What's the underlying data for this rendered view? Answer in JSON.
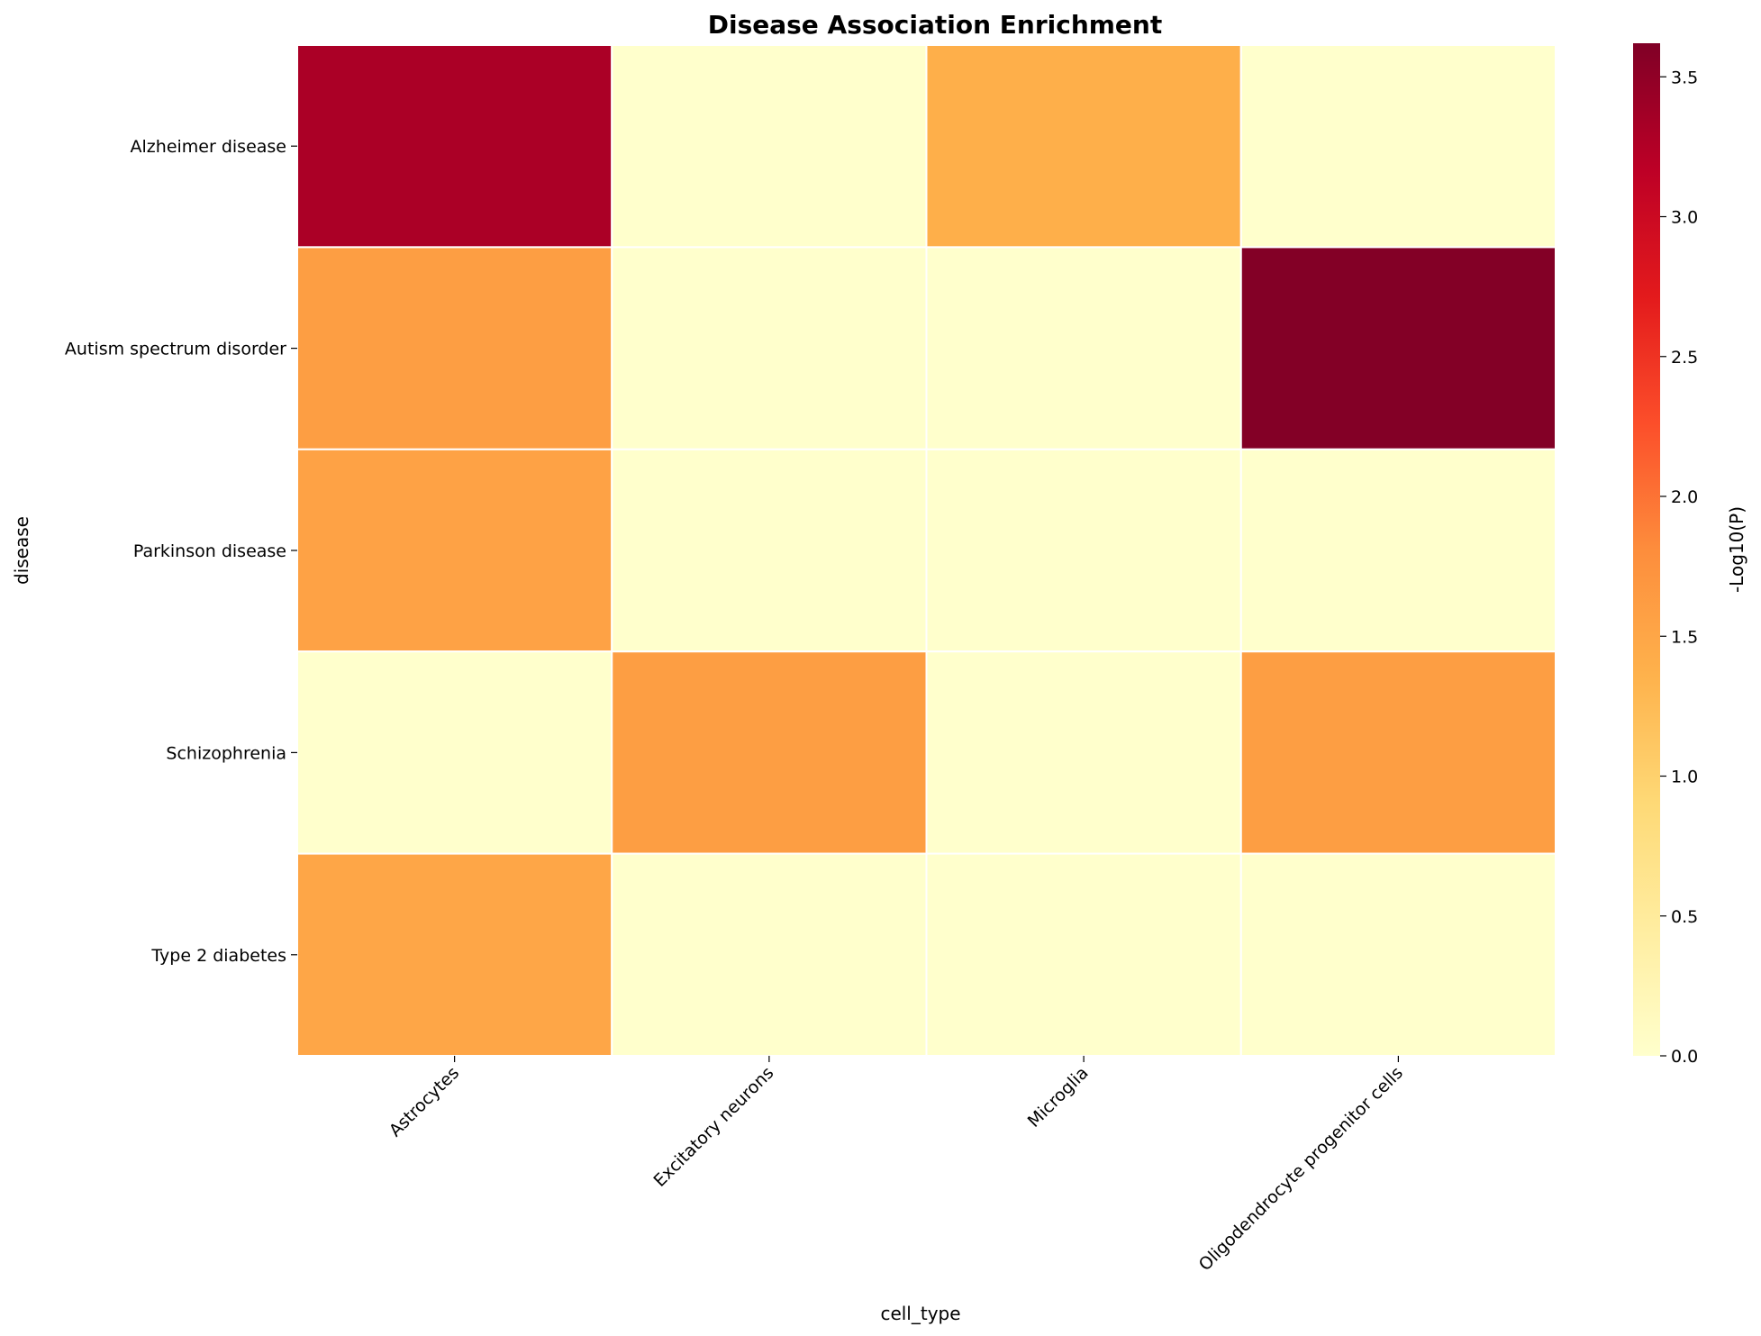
{
  "chart_data": {
    "type": "heatmap",
    "title": "Disease Association Enrichment",
    "xlabel": "cell_type",
    "ylabel": "disease",
    "x_categories": [
      "Astrocytes",
      "Excitatory neurons",
      "Microglia",
      "Oligodendrocyte progenitor cells"
    ],
    "y_categories": [
      "Alzheimer disease",
      "Autism spectrum disorder",
      "Parkinson disease",
      "Schizophrenia",
      "Type 2 diabetes"
    ],
    "values": [
      [
        3.3,
        0.0,
        1.4,
        0.0
      ],
      [
        1.6,
        0.0,
        0.0,
        3.6
      ],
      [
        1.55,
        0.0,
        0.0,
        0.0
      ],
      [
        0.0,
        1.6,
        0.0,
        1.6
      ],
      [
        1.5,
        0.0,
        0.0,
        0.0
      ]
    ],
    "colorbar": {
      "label": "-Log10(P)",
      "colormap": "YlOrRd",
      "range": [
        0.0,
        3.62
      ],
      "ticks": [
        0.0,
        0.5,
        1.0,
        1.5,
        2.0,
        2.5,
        3.0,
        3.5
      ],
      "tick_labels": [
        "0.0",
        "0.5",
        "1.0",
        "1.5",
        "2.0",
        "2.5",
        "3.0",
        "3.5"
      ]
    },
    "grid": false,
    "cell_border_color": "#ffffff"
  }
}
